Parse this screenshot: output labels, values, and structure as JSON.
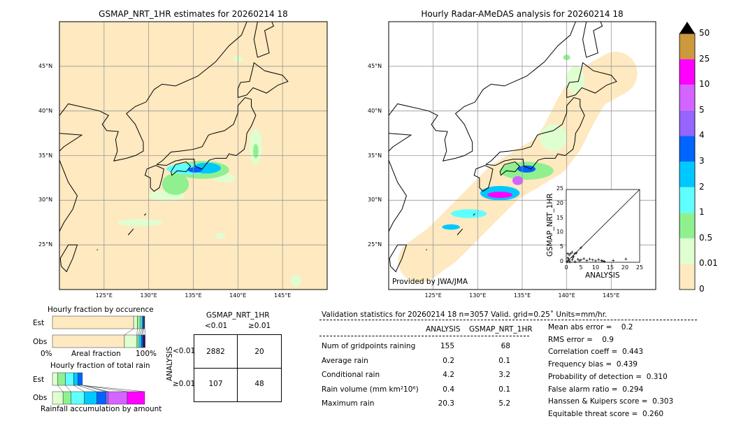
{
  "chart_data": [
    {
      "type": "heatmap",
      "title": "GSMAP_NRT_1HR estimates for 20260214 18",
      "x_ticks": [
        "125°E",
        "130°E",
        "135°E",
        "140°E",
        "145°E"
      ],
      "y_ticks": [
        "25°N",
        "30°N",
        "35°N",
        "40°N",
        "45°N"
      ],
      "xlim": [
        120,
        150
      ],
      "ylim": [
        20,
        50
      ],
      "background": "#fee9c0",
      "rain_areas": [
        {
          "lon": 135.2,
          "lat": 33.4,
          "rx": 0.8,
          "ry": 0.3,
          "level": "3-4"
        },
        {
          "lon": 136.5,
          "lat": 33.6,
          "rx": 1.6,
          "ry": 0.6,
          "level": "2-3"
        },
        {
          "lon": 134.5,
          "lat": 33.5,
          "rx": 2.5,
          "ry": 0.6,
          "level": "1-2"
        },
        {
          "lon": 136,
          "lat": 33.4,
          "rx": 3,
          "ry": 1,
          "level": "0.5-1"
        },
        {
          "lon": 133,
          "lat": 31.8,
          "rx": 1.5,
          "ry": 1.2,
          "level": "0.5-1"
        },
        {
          "lon": 132,
          "lat": 30.5,
          "rx": 2,
          "ry": 0.6,
          "level": "0.01-0.5"
        },
        {
          "lon": 129,
          "lat": 27.5,
          "rx": 2.5,
          "ry": 0.4,
          "level": "0.01-0.5"
        },
        {
          "lon": 142,
          "lat": 36,
          "rx": 0.7,
          "ry": 2,
          "level": "0.01-0.5"
        },
        {
          "lon": 142,
          "lat": 35.5,
          "rx": 0.3,
          "ry": 0.8,
          "level": "0.5-1"
        },
        {
          "lon": 138.5,
          "lat": 32.5,
          "rx": 1.2,
          "ry": 0.5,
          "level": "0.01-0.5"
        },
        {
          "lon": 138,
          "lat": 26,
          "rx": 0.6,
          "ry": 0.3,
          "level": "0.01-0.5"
        },
        {
          "lon": 146.5,
          "lat": 21,
          "rx": 0.6,
          "ry": 0.6,
          "level": "0.01-0.5"
        },
        {
          "lon": 140,
          "lat": 45.8,
          "rx": 0.6,
          "ry": 0.3,
          "level": "0.01-0.5"
        }
      ]
    },
    {
      "type": "heatmap",
      "title": "Hourly Radar-AMeDAS analysis for 20260214 18",
      "annotation": "Provided by JWA/JMA",
      "x_ticks": [
        "125°E",
        "130°E",
        "135°E",
        "140°E",
        "145°E"
      ],
      "y_ticks": [
        "25°N",
        "30°N",
        "35°N",
        "40°N",
        "45°N"
      ],
      "xlim": [
        120,
        150
      ],
      "ylim": [
        20,
        50
      ],
      "coverage_color": "#fee9c0",
      "coverage_track": [
        [
          123.5,
          23.2
        ],
        [
          126,
          25
        ],
        [
          128.5,
          27.5
        ],
        [
          131,
          30
        ],
        [
          133,
          32
        ],
        [
          135.5,
          33.5
        ],
        [
          138,
          35
        ],
        [
          139.5,
          37
        ],
        [
          141,
          40
        ],
        [
          142.5,
          42.5
        ],
        [
          145.5,
          44.2
        ]
      ],
      "rain_areas": [
        {
          "lon": 132.5,
          "lat": 30.6,
          "rx": 1.4,
          "ry": 0.35,
          "level": "10-25"
        },
        {
          "lon": 132.5,
          "lat": 30.8,
          "rx": 2.2,
          "ry": 0.8,
          "level": "2-3"
        },
        {
          "lon": 135.5,
          "lat": 33.5,
          "rx": 1,
          "ry": 0.4,
          "level": "3-4"
        },
        {
          "lon": 134.5,
          "lat": 32.2,
          "rx": 0.6,
          "ry": 0.5,
          "level": "5-10"
        },
        {
          "lon": 135.5,
          "lat": 33.3,
          "rx": 3,
          "ry": 1,
          "level": "0.5-1"
        },
        {
          "lon": 129,
          "lat": 28.5,
          "rx": 2,
          "ry": 0.5,
          "level": "1-2"
        },
        {
          "lon": 127,
          "lat": 27,
          "rx": 1,
          "ry": 0.3,
          "level": "2-3"
        },
        {
          "lon": 138.5,
          "lat": 37,
          "rx": 1.5,
          "ry": 1.5,
          "level": "0.01-0.5"
        },
        {
          "lon": 141,
          "lat": 43.5,
          "rx": 1,
          "ry": 1.5,
          "level": "0.01-0.5"
        },
        {
          "lon": 140,
          "lat": 46,
          "rx": 0.4,
          "ry": 0.3,
          "level": "0.5-1"
        }
      ]
    },
    {
      "type": "scatter",
      "xlabel": "ANALYSIS",
      "ylabel": "GSMAP_NRT_1HR",
      "xlim": [
        0,
        25
      ],
      "ylim": [
        0,
        25
      ],
      "x_ticks": [
        "0",
        "5",
        "10",
        "15",
        "20",
        "25"
      ],
      "y_ticks": [
        "0",
        "5",
        "10",
        "15",
        "20",
        "25"
      ],
      "points": [
        [
          0.3,
          0.2
        ],
        [
          0.5,
          1.5
        ],
        [
          1,
          2.5
        ],
        [
          1.5,
          3
        ],
        [
          2,
          3.5
        ],
        [
          2.5,
          2
        ],
        [
          3,
          3
        ],
        [
          3.5,
          3.2
        ],
        [
          1,
          0.5
        ],
        [
          2,
          0.8
        ],
        [
          0.8,
          1
        ],
        [
          5,
          5
        ],
        [
          4,
          1
        ],
        [
          5,
          0.8
        ],
        [
          6,
          1.2
        ],
        [
          7,
          0.6
        ],
        [
          8,
          1.1
        ],
        [
          9,
          0.8
        ],
        [
          10,
          0.5
        ],
        [
          11,
          0.9
        ],
        [
          12,
          0.6
        ],
        [
          12.5,
          0.4
        ],
        [
          13,
          0.3
        ],
        [
          16,
          0.6
        ],
        [
          20.3,
          1.1
        ],
        [
          3,
          0.2
        ],
        [
          4.5,
          0.5
        ],
        [
          1.2,
          0.1
        ],
        [
          2.2,
          1.5
        ],
        [
          0.5,
          3
        ]
      ]
    },
    {
      "type": "bar",
      "title": "Hourly fraction by occurence",
      "categories": [
        "Est",
        "Obs"
      ],
      "xlabel": "Areal fraction",
      "x_tick_left": "0%",
      "x_tick_right": "100%",
      "series": {
        "Est": [
          88,
          4,
          3,
          2,
          1,
          1,
          1
        ],
        "Obs": [
          78,
          13.5,
          1.5,
          1.5,
          2,
          1.5,
          2.5
        ]
      }
    },
    {
      "type": "bar",
      "title": "Hourly fraction of total rain",
      "categories": [
        "Est",
        "Obs"
      ],
      "xlabel": "Rainfall accumulation by amount",
      "series": {
        "Est": [
          5.5,
          8.5,
          9,
          4.5,
          5
        ],
        "Obs": [
          11.5,
          8.5,
          14.5,
          13.5,
          10,
          2.5,
          20.5,
          19
        ]
      }
    },
    {
      "type": "table",
      "title": "GSMAP_NRT_1HR",
      "col_headers": [
        "<0.01",
        "≥0.01"
      ],
      "row_label": "ANALYSIS",
      "row_headers": [
        "<0.01",
        "≥0.01"
      ],
      "cells": [
        [
          "2882",
          "20"
        ],
        [
          "107",
          "48"
        ]
      ]
    }
  ],
  "colorbar": {
    "levels": [
      "0",
      "0.01",
      "0.5",
      "1",
      "2",
      "3",
      "4",
      "5",
      "10",
      "25",
      "50"
    ],
    "colors": [
      "#fee9c0",
      "#e0ffd0",
      "#90f090",
      "#60ffff",
      "#00c8ff",
      "#0064ff",
      "#9664ff",
      "#d464ff",
      "#ff00ff",
      "#cc9a3c"
    ],
    "extend_color": "#000000"
  },
  "stats": {
    "header": "Validation statistics for 20260214 18  n=3057 Valid. grid=0.25˚ Units=mm/hr.",
    "col1": "ANALYSIS",
    "col2": "GSMAP_NRT_1HR",
    "rows": [
      {
        "label": "Num of gridpoints raining",
        "a": "155",
        "b": "68"
      },
      {
        "label": "Average rain",
        "a": "0.2",
        "b": "0.1"
      },
      {
        "label": "Conditional rain",
        "a": "4.2",
        "b": "3.2"
      },
      {
        "label": "Rain volume (mm km²10⁶)",
        "a": "0.4",
        "b": "0.1"
      },
      {
        "label": "Maximum rain",
        "a": "20.3",
        "b": "5.2"
      }
    ],
    "scores": [
      "Mean abs error =    0.2",
      "RMS error =    0.9",
      "Correlation coeff =  0.443",
      "Frequency bias =  0.439",
      "Probability of detection =  0.310",
      "False alarm ratio =  0.294",
      "Hanssen & Kuipers score =  0.303",
      "Equitable threat score =  0.260"
    ]
  }
}
